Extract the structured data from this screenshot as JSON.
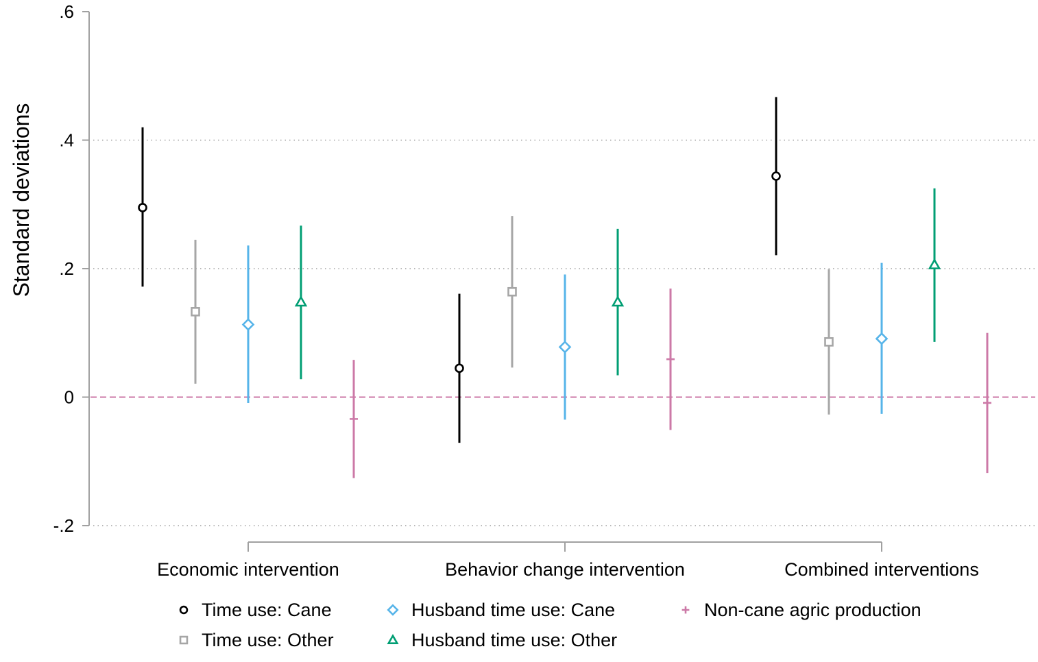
{
  "chart_data": {
    "type": "errorbar",
    "ylabel": "Standard deviations",
    "ylim": [
      -0.2,
      0.6
    ],
    "yticks": [
      -0.2,
      0,
      0.2,
      0.4,
      0.6
    ],
    "ytick_labels": [
      "-.2",
      "0",
      ".2",
      ".4",
      ".6"
    ],
    "grid": "horizontal dotted",
    "reference_line": {
      "y": 0,
      "style": "dashed",
      "color": "#cc79a7"
    },
    "categories": [
      "Economic intervention",
      "Behavior change intervention",
      "Combined interventions"
    ],
    "legend_position": "bottom",
    "series": [
      {
        "name": "Time use: Cane",
        "color": "#000000",
        "marker": "circle",
        "points": [
          {
            "estimate": 0.295,
            "lower": 0.172,
            "upper": 0.42
          },
          {
            "estimate": 0.045,
            "lower": -0.071,
            "upper": 0.161
          },
          {
            "estimate": 0.344,
            "lower": 0.221,
            "upper": 0.467
          }
        ]
      },
      {
        "name": "Time use: Other",
        "color": "#a6a6a6",
        "marker": "square",
        "points": [
          {
            "estimate": 0.133,
            "lower": 0.021,
            "upper": 0.245
          },
          {
            "estimate": 0.164,
            "lower": 0.046,
            "upper": 0.282
          },
          {
            "estimate": 0.086,
            "lower": -0.027,
            "upper": 0.199
          }
        ]
      },
      {
        "name": "Husband time use: Cane",
        "color": "#56b4e9",
        "marker": "diamond",
        "points": [
          {
            "estimate": 0.113,
            "lower": -0.009,
            "upper": 0.236
          },
          {
            "estimate": 0.078,
            "lower": -0.035,
            "upper": 0.191
          },
          {
            "estimate": 0.091,
            "lower": -0.026,
            "upper": 0.209
          }
        ]
      },
      {
        "name": "Husband time use: Other",
        "color": "#009e73",
        "marker": "triangle",
        "points": [
          {
            "estimate": 0.148,
            "lower": 0.028,
            "upper": 0.267
          },
          {
            "estimate": 0.148,
            "lower": 0.034,
            "upper": 0.262
          },
          {
            "estimate": 0.206,
            "lower": 0.086,
            "upper": 0.325
          }
        ]
      },
      {
        "name": "Non-cane agric production",
        "color": "#cc79a7",
        "marker": "plus",
        "points": [
          {
            "estimate": -0.034,
            "lower": -0.126,
            "upper": 0.058
          },
          {
            "estimate": 0.059,
            "lower": -0.051,
            "upper": 0.169
          },
          {
            "estimate": -0.009,
            "lower": -0.118,
            "upper": 0.1
          }
        ]
      }
    ]
  }
}
